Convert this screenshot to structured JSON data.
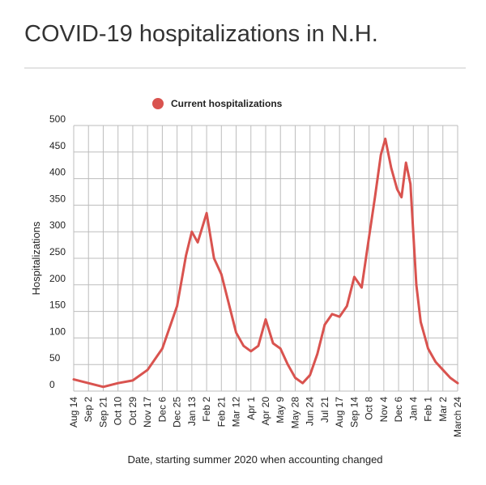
{
  "header": {
    "title": "COVID-19 hospitalizations in N.H."
  },
  "chart_data": {
    "type": "line",
    "title": "COVID-19 hospitalizations in N.H.",
    "xlabel": "Date, starting summer 2020 when accounting changed",
    "ylabel": "Hospitalizations",
    "ylim": [
      0,
      500
    ],
    "yticks": [
      0,
      50,
      100,
      150,
      200,
      250,
      300,
      350,
      400,
      450,
      500
    ],
    "xtick_labels": [
      "Aug 14",
      "Sep 2",
      "Sep 21",
      "Oct 10",
      "Oct 29",
      "Nov 17",
      "Dec 6",
      "Dec 25",
      "Jan 13",
      "Feb 2",
      "Feb 21",
      "Mar 12",
      "Apr 1",
      "Apr 20",
      "May 9",
      "May 28",
      "Jun 24",
      "Jul 21",
      "Aug 17",
      "Sep 14",
      "Oct 8",
      "Nov 4",
      "Dec 6",
      "Jan 4",
      "Feb 1",
      "Mar 2",
      "March 24"
    ],
    "grid": true,
    "legend_position": "top",
    "color": "#d9534f",
    "series": [
      {
        "name": "Current hospitalizations",
        "x": [
          0,
          1,
          2,
          3,
          4,
          5,
          6,
          7,
          7.6,
          8,
          8.4,
          9,
          9.5,
          10,
          10.5,
          11,
          11.5,
          12,
          12.5,
          13,
          13.5,
          14,
          14.5,
          15,
          15.5,
          16,
          16.5,
          17,
          17.5,
          18,
          18.5,
          19,
          19.5,
          20,
          20.4,
          20.8,
          21.1,
          21.5,
          21.9,
          22.2,
          22.5,
          22.8,
          23.2,
          23.5,
          23.8,
          24,
          24.2,
          24.5,
          25,
          25.5,
          26
        ],
        "y": [
          22,
          15,
          8,
          15,
          20,
          40,
          80,
          160,
          255,
          300,
          280,
          335,
          250,
          220,
          165,
          110,
          85,
          75,
          85,
          135,
          90,
          80,
          50,
          25,
          15,
          30,
          70,
          125,
          145,
          140,
          160,
          215,
          195,
          290,
          365,
          445,
          475,
          420,
          380,
          365,
          430,
          390,
          200,
          130,
          100,
          80,
          70,
          55,
          40,
          25,
          15
        ]
      }
    ]
  }
}
